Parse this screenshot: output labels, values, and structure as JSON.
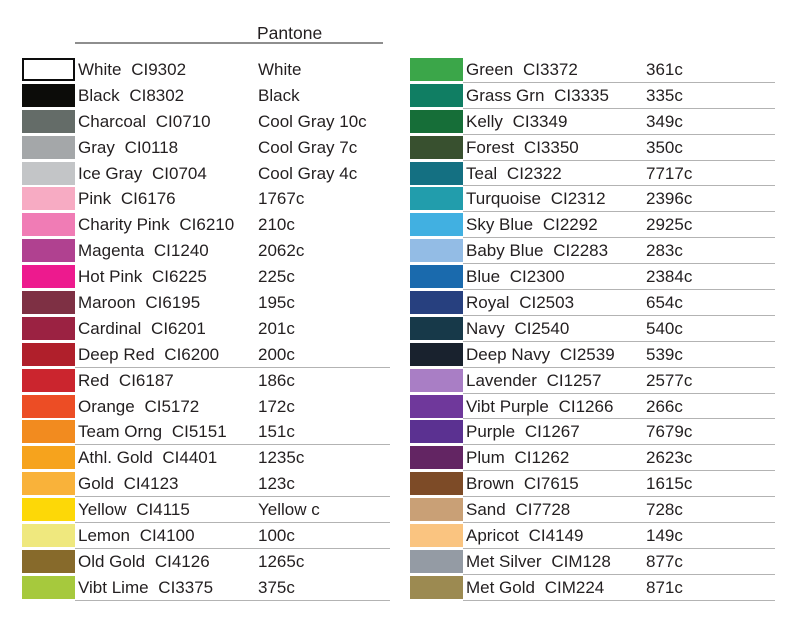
{
  "chart_data": {
    "type": "table",
    "title": "Pantone",
    "columns": [
      "swatch_hex",
      "color_name",
      "code",
      "pantone_value"
    ],
    "left_rows": [
      {
        "name": "White",
        "code": "CI9302",
        "pantone": "White",
        "hex": "#ffffff",
        "swatch_border": true
      },
      {
        "name": "Black",
        "code": "CI8302",
        "pantone": "Black",
        "hex": "#0c0c09"
      },
      {
        "name": "Charcoal",
        "code": "CI0710",
        "pantone": "Cool Gray 10c",
        "hex": "#646c68"
      },
      {
        "name": "Gray",
        "code": "CI0118",
        "pantone": "Cool Gray 7c",
        "hex": "#a4a7a9"
      },
      {
        "name": "Ice Gray",
        "code": "CI0704",
        "pantone": "Cool Gray 4c",
        "hex": "#c3c5c7"
      },
      {
        "name": "Pink",
        "code": "CI6176",
        "pantone": "1767c",
        "hex": "#f7abc3"
      },
      {
        "name": "Charity Pink",
        "code": "CI6210",
        "pantone": "210c",
        "hex": "#f07cb5"
      },
      {
        "name": "Magenta",
        "code": "CI1240",
        "pantone": "2062c",
        "hex": "#b04190"
      },
      {
        "name": "Hot Pink",
        "code": "CI6225",
        "pantone": "225c",
        "hex": "#ed1a8e"
      },
      {
        "name": "Maroon",
        "code": "CI6195",
        "pantone": "195c",
        "hex": "#7e3044"
      },
      {
        "name": "Cardinal",
        "code": "CI6201",
        "pantone": "201c",
        "hex": "#9b2242"
      },
      {
        "name": "Deep Red",
        "code": "CI6200",
        "pantone": "200c",
        "hex": "#b01f2b",
        "underline": true
      },
      {
        "name": "Red",
        "code": "CI6187",
        "pantone": "186c",
        "hex": "#cb252e"
      },
      {
        "name": "Orange",
        "code": "CI5172",
        "pantone": "172c",
        "hex": "#ec4d25"
      },
      {
        "name": "Team Orng",
        "code": "CI5151",
        "pantone": "151c",
        "hex": "#f28b1f",
        "underline": true
      },
      {
        "name": "Athl. Gold",
        "code": "CI4401",
        "pantone": "1235c",
        "hex": "#f6a31d"
      },
      {
        "name": "Gold",
        "code": "CI4123",
        "pantone": "123c",
        "hex": "#f9b23a",
        "underline": true
      },
      {
        "name": "Yellow",
        "code": "CI4115",
        "pantone": "Yellow c",
        "hex": "#fdd807",
        "underline": true
      },
      {
        "name": "Lemon",
        "code": "CI4100",
        "pantone": "100c",
        "hex": "#efe87e",
        "underline": true
      },
      {
        "name": "Old Gold",
        "code": "CI4126",
        "pantone": "1265c",
        "hex": "#876a2b"
      },
      {
        "name": "Vibt Lime",
        "code": "CI3375",
        "pantone": "375c",
        "hex": "#a6c93d",
        "underline": true
      }
    ],
    "right_rows": [
      {
        "name": "Green",
        "code": "CI3372",
        "pantone": "361c",
        "hex": "#3ba649",
        "underline": true
      },
      {
        "name": "Grass Grn",
        "code": "CI3335",
        "pantone": "335c",
        "hex": "#107e63",
        "underline": true
      },
      {
        "name": "Kelly",
        "code": "CI3349",
        "pantone": "349c",
        "hex": "#166e38",
        "underline": true
      },
      {
        "name": "Forest",
        "code": "CI3350",
        "pantone": "350c",
        "hex": "#38502f",
        "underline": true
      },
      {
        "name": "Teal",
        "code": "CI2322",
        "pantone": "7717c",
        "hex": "#147082",
        "underline": true
      },
      {
        "name": "Turquoise",
        "code": "CI2312",
        "pantone": "2396c",
        "hex": "#229dac",
        "underline": true
      },
      {
        "name": "Sky Blue",
        "code": "CI2292",
        "pantone": "2925c",
        "hex": "#41b0e1",
        "underline": true
      },
      {
        "name": "Baby Blue",
        "code": "CI2283",
        "pantone": "283c",
        "hex": "#93bce5",
        "underline": true
      },
      {
        "name": "Blue",
        "code": "CI2300",
        "pantone": "2384c",
        "hex": "#1a6aad",
        "underline": true
      },
      {
        "name": "Royal",
        "code": "CI2503",
        "pantone": "654c",
        "hex": "#27407f",
        "underline": true
      },
      {
        "name": "Navy",
        "code": "CI2540",
        "pantone": "540c",
        "hex": "#173949",
        "underline": true
      },
      {
        "name": "Deep Navy",
        "code": "CI2539",
        "pantone": "539c",
        "hex": "#19222e",
        "underline": true
      },
      {
        "name": "Lavender",
        "code": "CI1257",
        "pantone": "2577c",
        "hex": "#a97ec5",
        "underline": true
      },
      {
        "name": "Vibt Purple",
        "code": "CI1266",
        "pantone": "266c",
        "hex": "#6f389b",
        "underline": true
      },
      {
        "name": "Purple",
        "code": "CI1267",
        "pantone": "7679c",
        "hex": "#5b3191",
        "underline": true
      },
      {
        "name": "Plum",
        "code": "CI1262",
        "pantone": "2623c",
        "hex": "#632563",
        "underline": true
      },
      {
        "name": "Brown",
        "code": "CI7615",
        "pantone": "1615c",
        "hex": "#7d4b27",
        "underline": true
      },
      {
        "name": "Sand",
        "code": "CI7728",
        "pantone": "728c",
        "hex": "#c9a076",
        "underline": true
      },
      {
        "name": "Apricot",
        "code": "CI4149",
        "pantone": "149c",
        "hex": "#fac480",
        "underline": true
      },
      {
        "name": "Met Silver",
        "code": "CIM128",
        "pantone": "877c",
        "hex": "#949ba4",
        "underline": true
      },
      {
        "name": "Met Gold",
        "code": "CIM224",
        "pantone": "871c",
        "hex": "#9c8a51",
        "underline": true
      }
    ]
  }
}
